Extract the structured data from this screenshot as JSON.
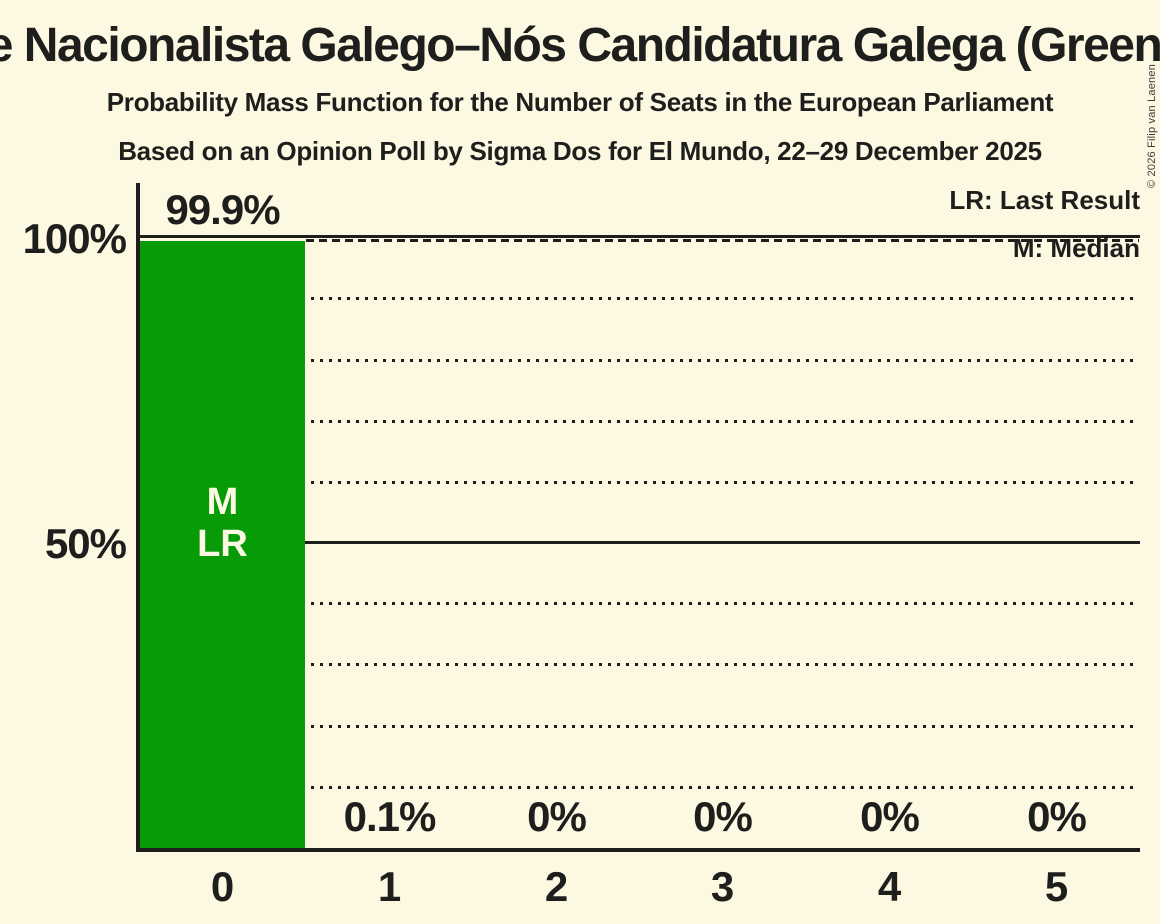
{
  "title": "Bloque Nacionalista Galego–Nós Candidatura Galega (Greens/EFA)",
  "subtitle": "Probability Mass Function for the Number of Seats in the European Parliament",
  "source_line": "Based on an Opinion Poll by Sigma Dos for El Mundo, 22–29 December 2025",
  "copyright": "© 2026 Filip van Laenen",
  "legend": {
    "last_result": "LR: Last Result",
    "median": "M: Median"
  },
  "y_axis": {
    "tick_100": "100%",
    "tick_50": "50%"
  },
  "bar_overlay": {
    "median": "M",
    "last_result": "LR"
  },
  "colors": {
    "background": "#FCF8E2",
    "bar_green": "#089B08",
    "text": "#1E1E1C",
    "overlay_text": "#FCF8E2"
  },
  "chart_data": {
    "type": "bar",
    "title": "Bloque Nacionalista Galego–Nós Candidatura Galega (Greens/EFA)",
    "subtitle": "Probability Mass Function for the Number of Seats in the European Parliament",
    "note": "Based on an Opinion Poll by Sigma Dos for El Mundo, 22–29 December 2025",
    "categories": [
      "0",
      "1",
      "2",
      "3",
      "4",
      "5"
    ],
    "values": [
      99.9,
      0.1,
      0,
      0,
      0,
      0
    ],
    "value_labels": [
      "99.9%",
      "0.1%",
      "0%",
      "0%",
      "0%",
      "0%"
    ],
    "ylim": [
      0,
      100
    ],
    "yticks": [
      {
        "value": 100,
        "label": "100%"
      },
      {
        "value": 50,
        "label": "50%"
      }
    ],
    "solid_gridlines": [
      100,
      50
    ],
    "dotted_gridlines": [
      90,
      80,
      70,
      60,
      40,
      30,
      20,
      10
    ],
    "legend": [
      "LR: Last Result",
      "M: Median"
    ],
    "median_category": "0",
    "last_result_category": "0",
    "grid": true,
    "legend_position": "top-right"
  }
}
